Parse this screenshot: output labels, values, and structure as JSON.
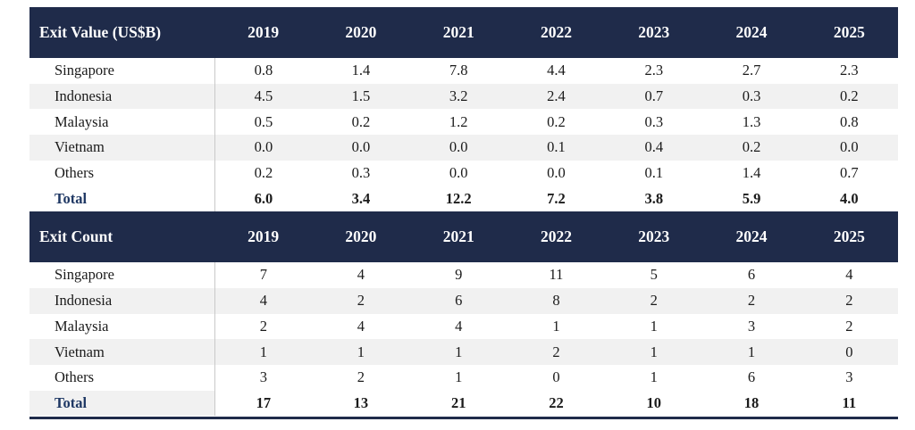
{
  "colors": {
    "header_bg": "#1f2b4a",
    "header_text": "#ffffff",
    "stripe": "#f1f1f1",
    "divider": "#c9c9c9",
    "body_text": "#1b1b1b",
    "total_label": "#1f3864",
    "rule": "#1f2b4a"
  },
  "chart_data": [
    {
      "type": "table",
      "title": "Exit Value (US$B)",
      "columns": [
        "2019",
        "2020",
        "2021",
        "2022",
        "2023",
        "2024",
        "2025"
      ],
      "rows": [
        {
          "label": "Singapore",
          "values": [
            "0.8",
            "1.4",
            "7.8",
            "4.4",
            "2.3",
            "2.7",
            "2.3"
          ]
        },
        {
          "label": "Indonesia",
          "values": [
            "4.5",
            "1.5",
            "3.2",
            "2.4",
            "0.7",
            "0.3",
            "0.2"
          ]
        },
        {
          "label": "Malaysia",
          "values": [
            "0.5",
            "0.2",
            "1.2",
            "0.2",
            "0.3",
            "1.3",
            "0.8"
          ]
        },
        {
          "label": "Vietnam",
          "values": [
            "0.0",
            "0.0",
            "0.0",
            "0.1",
            "0.4",
            "0.2",
            "0.0"
          ]
        },
        {
          "label": "Others",
          "values": [
            "0.2",
            "0.3",
            "0.0",
            "0.0",
            "0.1",
            "1.4",
            "0.7"
          ]
        }
      ],
      "total": {
        "label": "Total",
        "values": [
          "6.0",
          "3.4",
          "12.2",
          "7.2",
          "3.8",
          "5.9",
          "4.0"
        ]
      }
    },
    {
      "type": "table",
      "title": "Exit Count",
      "columns": [
        "2019",
        "2020",
        "2021",
        "2022",
        "2023",
        "2024",
        "2025"
      ],
      "rows": [
        {
          "label": "Singapore",
          "values": [
            "7",
            "4",
            "9",
            "11",
            "5",
            "6",
            "4"
          ]
        },
        {
          "label": "Indonesia",
          "values": [
            "4",
            "2",
            "6",
            "8",
            "2",
            "2",
            "2"
          ]
        },
        {
          "label": "Malaysia",
          "values": [
            "2",
            "4",
            "4",
            "1",
            "1",
            "3",
            "2"
          ]
        },
        {
          "label": "Vietnam",
          "values": [
            "1",
            "1",
            "1",
            "2",
            "1",
            "1",
            "0"
          ]
        },
        {
          "label": "Others",
          "values": [
            "3",
            "2",
            "1",
            "0",
            "1",
            "6",
            "3"
          ]
        }
      ],
      "total": {
        "label": "Total",
        "values": [
          "17",
          "13",
          "21",
          "22",
          "10",
          "18",
          "11"
        ]
      }
    }
  ]
}
